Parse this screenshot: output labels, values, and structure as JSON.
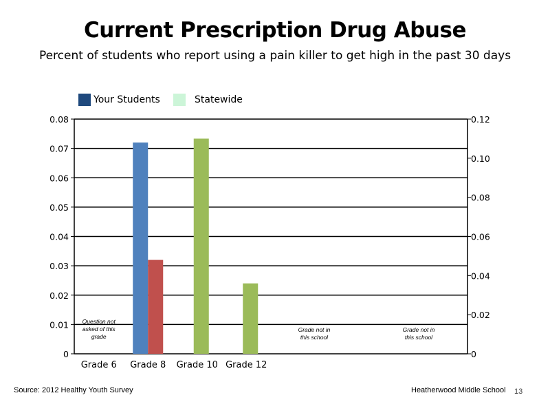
{
  "chart_data": {
    "type": "bar",
    "title": "Current Prescription Drug Abuse",
    "subtitle": "Percent of students who report using a pain killer to get high in the past 30 days",
    "categories": [
      "Grade 6",
      "Grade 8",
      "Grade 10",
      "Grade 12"
    ],
    "series": [
      {
        "name": "Your Students",
        "axis": "left",
        "color": "#4f81bd",
        "values": [
          null,
          0.072,
          null,
          null
        ]
      },
      {
        "name": "",
        "axis": "left",
        "color": "#c0504d",
        "values": [
          null,
          0.032,
          null,
          null
        ]
      },
      {
        "name": "Statewide",
        "axis": "right",
        "color": "#9bbb59",
        "values": [
          null,
          null,
          0.11,
          0.036
        ]
      }
    ],
    "left_axis": {
      "ylim": [
        0,
        0.08
      ],
      "ticks": [
        "0",
        "0.01",
        "0.02",
        "0.03",
        "0.04",
        "0.05",
        "0.06",
        "0.07",
        "0.08"
      ]
    },
    "right_axis": {
      "ylim": [
        0,
        0.12
      ],
      "ticks": [
        "0",
        "0.02",
        "0.04",
        "0.06",
        "0.08",
        "0.10",
        "0.12"
      ]
    },
    "grid": true,
    "legend": {
      "placement": "top-left",
      "items": [
        {
          "label": "Your Students",
          "color": "#1f497d"
        },
        {
          "label": "Statewide",
          "color": "#ccf5d8"
        }
      ]
    },
    "annotations": [
      {
        "category": "Grade 6",
        "lines": [
          "Question not",
          "asked of this",
          "grade"
        ]
      },
      {
        "category": "Grade 12",
        "lines": [
          "Grade not in",
          "this school"
        ],
        "slot": "right-1"
      },
      {
        "category": "Grade 12",
        "lines": [
          "Grade not in",
          "this school"
        ],
        "slot": "right-2"
      }
    ]
  },
  "footer": {
    "source": "Source: 2012 Healthy Youth Survey",
    "school": "Heatherwood Middle  School",
    "page": "13"
  }
}
